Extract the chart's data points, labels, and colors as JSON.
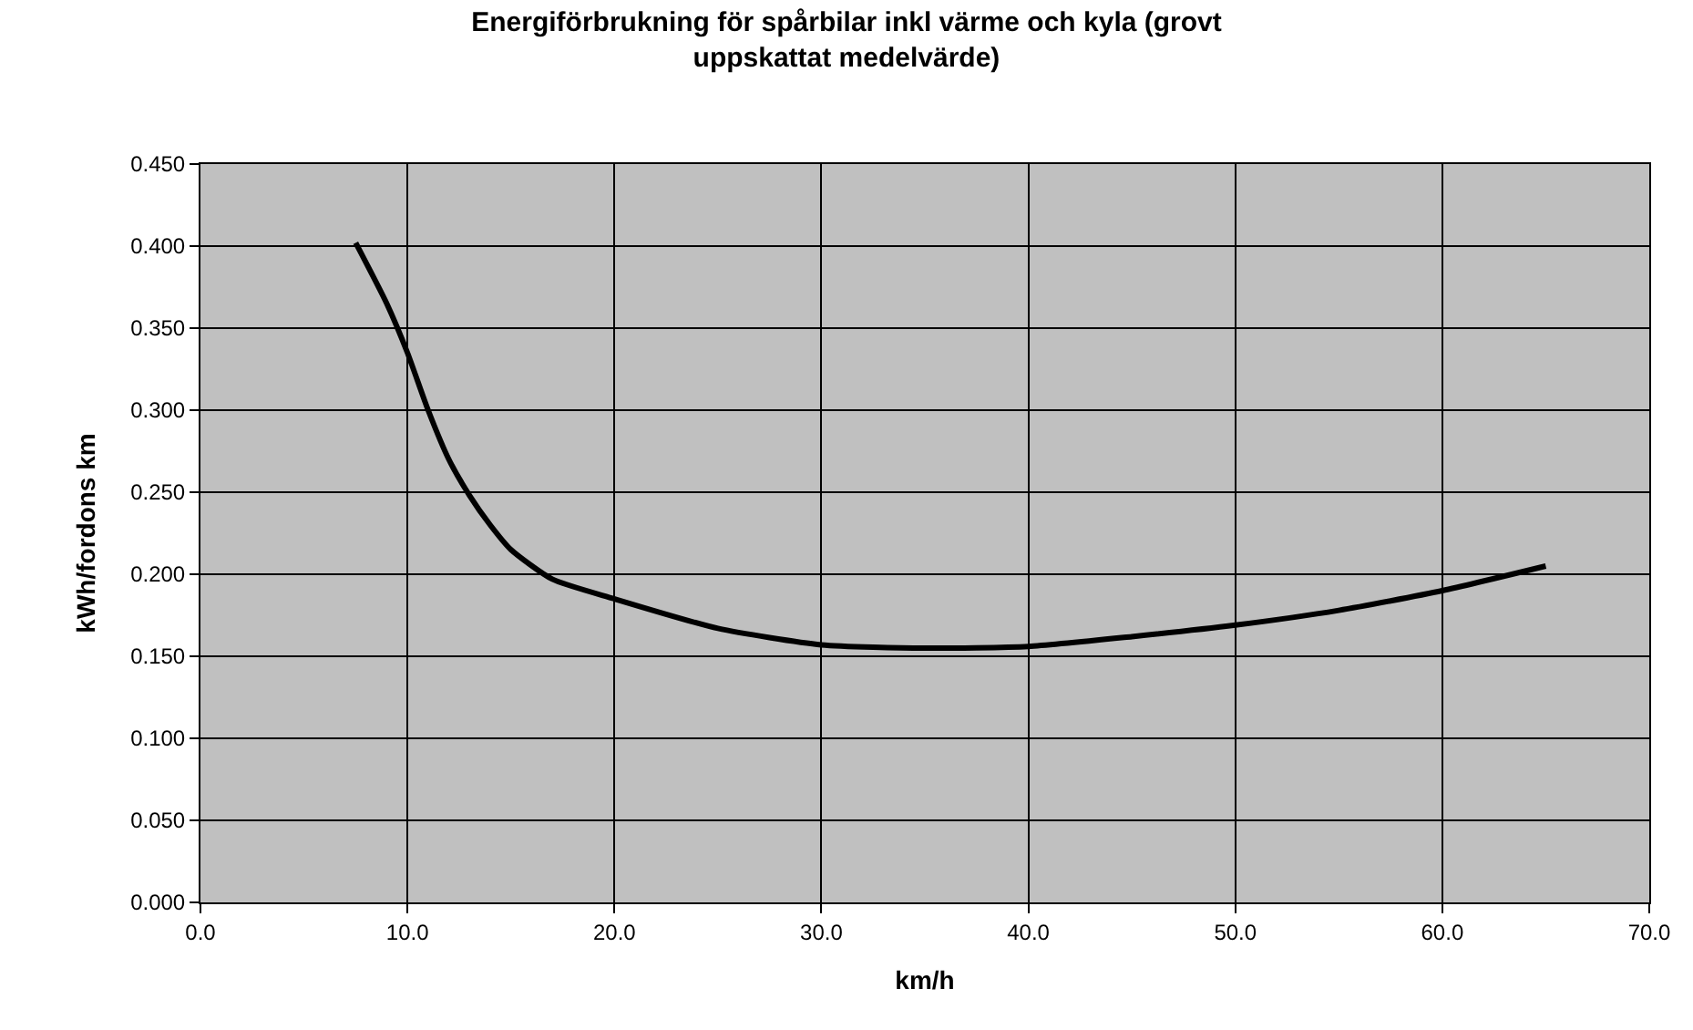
{
  "chart_data": {
    "type": "line",
    "title": "Energiförbrukning för spårbilar inkl värme och kyla (grovt uppskattat medelvärde)",
    "xlabel": "km/h",
    "ylabel": "kWh/fordons km",
    "x": [
      7.5,
      9,
      10,
      11,
      12,
      13,
      14,
      15,
      17,
      20,
      25,
      30,
      35,
      40,
      45,
      50,
      55,
      60,
      65
    ],
    "series": [
      {
        "color": "#000000",
        "values": [
          0.402,
          0.365,
          0.335,
          0.3,
          0.27,
          0.248,
          0.23,
          0.215,
          0.197,
          0.185,
          0.167,
          0.157,
          0.155,
          0.156,
          0.162,
          0.169,
          0.178,
          0.19,
          0.205
        ]
      }
    ],
    "xlim": [
      0,
      70
    ],
    "xticks": [
      {
        "value": 0,
        "label": "0.0"
      },
      {
        "value": 10,
        "label": "10.0"
      },
      {
        "value": 20,
        "label": "20.0"
      },
      {
        "value": 30,
        "label": "30.0"
      },
      {
        "value": 40,
        "label": "40.0"
      },
      {
        "value": 50,
        "label": "50.0"
      },
      {
        "value": 60,
        "label": "60.0"
      },
      {
        "value": 70,
        "label": "70.0"
      }
    ],
    "ylim": [
      0,
      0.45
    ],
    "yticks": [
      {
        "value": 0,
        "label": "0.000"
      },
      {
        "value": 0.05,
        "label": "0.050"
      },
      {
        "value": 0.1,
        "label": "0.100"
      },
      {
        "value": 0.15,
        "label": "0.150"
      },
      {
        "value": 0.2,
        "label": "0.200"
      },
      {
        "value": 0.25,
        "label": "0.250"
      },
      {
        "value": 0.3,
        "label": "0.300"
      },
      {
        "value": 0.35,
        "label": "0.350"
      },
      {
        "value": 0.4,
        "label": "0.400"
      },
      {
        "value": 0.45,
        "label": "0.450"
      }
    ],
    "grid": true,
    "marker": "none",
    "line_style": "solid"
  }
}
